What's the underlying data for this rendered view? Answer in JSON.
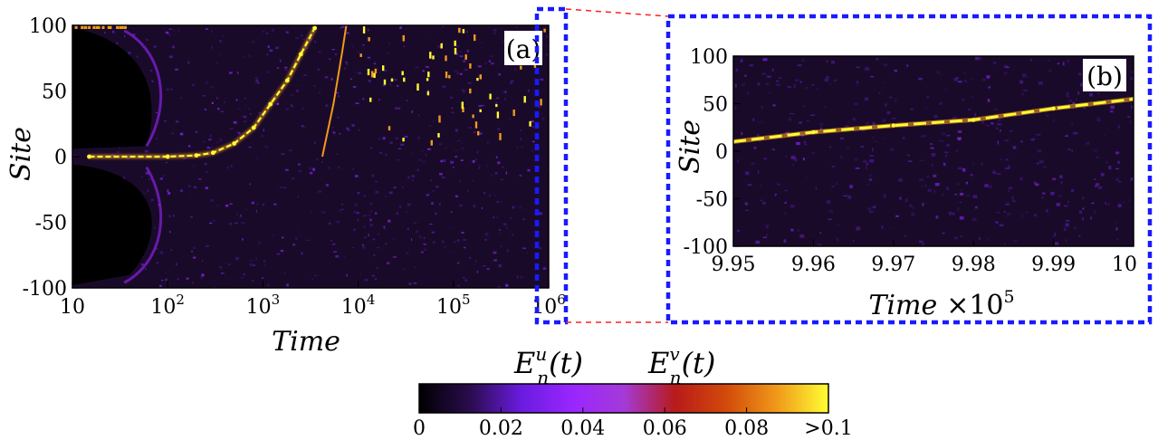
{
  "colors": {
    "colormap": [
      "#000000",
      "#2a0c4e",
      "#6a1be0",
      "#9a26ff",
      "#a43ad8",
      "#b81a1a",
      "#d24a0a",
      "#f09a1a",
      "#ffff33"
    ],
    "zoom_box": "#1a1aff",
    "zoom_line": "#ff2020",
    "background_dark": "#1a0a2a"
  },
  "chart_data": [
    {
      "id": "a",
      "type": "heatmap",
      "panel_label": "(a)",
      "xlabel": "Time",
      "ylabel": "Site",
      "x_scale": "log",
      "xlim": [
        10,
        1000000
      ],
      "ylim": [
        -100,
        100
      ],
      "x_ticks": [
        {
          "value": 10,
          "label": "10"
        },
        {
          "value": 100,
          "label": "10",
          "exp": "2"
        },
        {
          "value": 1000,
          "label": "10",
          "exp": "3"
        },
        {
          "value": 10000,
          "label": "10",
          "exp": "4"
        },
        {
          "value": 100000,
          "label": "10",
          "exp": "5"
        },
        {
          "value": 1000000,
          "label": "10",
          "exp": "6"
        }
      ],
      "y_ticks": [
        {
          "value": 100,
          "label": "100"
        },
        {
          "value": 50,
          "label": "50"
        },
        {
          "value": 0,
          "label": "0"
        },
        {
          "value": -50,
          "label": "-50"
        },
        {
          "value": -100,
          "label": "-100"
        }
      ],
      "bright_trajectory": [
        {
          "x": 15,
          "y": 0
        },
        {
          "x": 100,
          "y": 0
        },
        {
          "x": 200,
          "y": 1
        },
        {
          "x": 300,
          "y": 3
        },
        {
          "x": 500,
          "y": 10
        },
        {
          "x": 800,
          "y": 22
        },
        {
          "x": 1200,
          "y": 40
        },
        {
          "x": 1800,
          "y": 58
        },
        {
          "x": 2500,
          "y": 78
        },
        {
          "x": 3500,
          "y": 98
        }
      ],
      "bright_streak": [
        {
          "x": 4200,
          "y": 0
        },
        {
          "x": 5500,
          "y": 40
        },
        {
          "x": 6800,
          "y": 80
        },
        {
          "x": 7500,
          "y": 100
        }
      ]
    },
    {
      "id": "b",
      "type": "heatmap",
      "panel_label": "(b)",
      "xlabel": "Time",
      "x_multiplier": "×10",
      "x_multiplier_exp": "5",
      "ylabel": "Site",
      "xlim": [
        9.95,
        10
      ],
      "ylim": [
        -100,
        100
      ],
      "x_ticks": [
        {
          "value": 9.95,
          "label": "9.95"
        },
        {
          "value": 9.96,
          "label": "9.96"
        },
        {
          "value": 9.97,
          "label": "9.97"
        },
        {
          "value": 9.98,
          "label": "9.98"
        },
        {
          "value": 9.99,
          "label": "9.99"
        },
        {
          "value": 10,
          "label": "10"
        }
      ],
      "y_ticks": [
        {
          "value": 100,
          "label": "100"
        },
        {
          "value": 50,
          "label": "50"
        },
        {
          "value": 0,
          "label": "0"
        },
        {
          "value": -50,
          "label": "-50"
        },
        {
          "value": -100,
          "label": "-100"
        }
      ],
      "bright_trajectory": [
        {
          "x": 9.95,
          "y": 10
        },
        {
          "x": 9.96,
          "y": 20
        },
        {
          "x": 9.97,
          "y": 27
        },
        {
          "x": 9.98,
          "y": 33
        },
        {
          "x": 9.99,
          "y": 45
        },
        {
          "x": 10,
          "y": 55
        }
      ]
    }
  ],
  "colorbar": {
    "titles": [
      {
        "base": "E",
        "sub": "n",
        "sup": "u",
        "tail": "(t)"
      },
      {
        "base": "E",
        "sub": "n",
        "sup": "v",
        "tail": "(t)"
      }
    ],
    "range": [
      0,
      0.1
    ],
    "ticks": [
      {
        "value": 0,
        "label": "0"
      },
      {
        "value": 0.02,
        "label": "0.02"
      },
      {
        "value": 0.04,
        "label": "0.04"
      },
      {
        "value": 0.06,
        "label": "0.06"
      },
      {
        "value": 0.08,
        "label": "0.08"
      },
      {
        "value": 0.1,
        "label": ">0.1"
      }
    ]
  }
}
